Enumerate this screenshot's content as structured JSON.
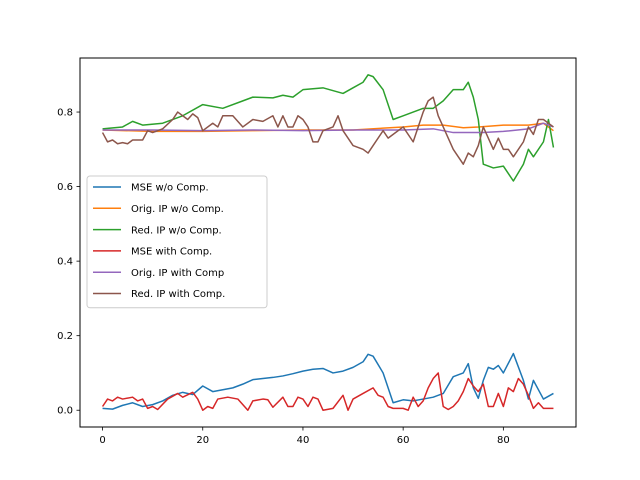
{
  "chart_data": {
    "type": "line",
    "title": "",
    "xlabel": "",
    "ylabel": "",
    "xlim": [
      -4.5,
      94.5
    ],
    "ylim": [
      -0.045,
      0.945
    ],
    "xticks": [
      0,
      20,
      40,
      60,
      80
    ],
    "yticks": [
      0.0,
      0.2,
      0.4,
      0.6,
      0.8
    ],
    "xtick_labels": [
      "0",
      "20",
      "40",
      "60",
      "80"
    ],
    "ytick_labels": [
      "0.0",
      "0.2",
      "0.4",
      "0.6",
      "0.8"
    ],
    "grid": false,
    "legend_position": "center-left",
    "series": [
      {
        "name": "MSE w/o Comp.",
        "color": "#1f77b4",
        "points": [
          [
            0,
            0.005
          ],
          [
            2,
            0.003
          ],
          [
            4,
            0.013
          ],
          [
            6,
            0.02
          ],
          [
            8,
            0.01
          ],
          [
            10,
            0.015
          ],
          [
            12,
            0.025
          ],
          [
            14,
            0.04
          ],
          [
            16,
            0.048
          ],
          [
            18,
            0.042
          ],
          [
            20,
            0.065
          ],
          [
            22,
            0.05
          ],
          [
            24,
            0.055
          ],
          [
            26,
            0.06
          ],
          [
            28,
            0.07
          ],
          [
            30,
            0.082
          ],
          [
            32,
            0.085
          ],
          [
            34,
            0.088
          ],
          [
            36,
            0.092
          ],
          [
            38,
            0.098
          ],
          [
            40,
            0.105
          ],
          [
            42,
            0.11
          ],
          [
            44,
            0.112
          ],
          [
            46,
            0.1
          ],
          [
            48,
            0.105
          ],
          [
            50,
            0.115
          ],
          [
            52,
            0.13
          ],
          [
            53,
            0.15
          ],
          [
            54,
            0.145
          ],
          [
            56,
            0.1
          ],
          [
            58,
            0.02
          ],
          [
            60,
            0.028
          ],
          [
            62,
            0.025
          ],
          [
            64,
            0.03
          ],
          [
            66,
            0.035
          ],
          [
            68,
            0.045
          ],
          [
            70,
            0.09
          ],
          [
            72,
            0.1
          ],
          [
            73,
            0.125
          ],
          [
            74,
            0.06
          ],
          [
            75,
            0.032
          ],
          [
            76,
            0.08
          ],
          [
            77,
            0.115
          ],
          [
            78,
            0.11
          ],
          [
            79,
            0.12
          ],
          [
            80,
            0.1
          ],
          [
            82,
            0.152
          ],
          [
            84,
            0.08
          ],
          [
            85,
            0.03
          ],
          [
            86,
            0.08
          ],
          [
            88,
            0.03
          ],
          [
            90,
            0.045
          ]
        ]
      },
      {
        "name": "Orig. IP w/o Comp.",
        "color": "#ff7f0e",
        "points": [
          [
            0,
            0.752
          ],
          [
            10,
            0.748
          ],
          [
            20,
            0.748
          ],
          [
            30,
            0.75
          ],
          [
            40,
            0.752
          ],
          [
            50,
            0.752
          ],
          [
            60,
            0.76
          ],
          [
            64,
            0.765
          ],
          [
            68,
            0.765
          ],
          [
            72,
            0.758
          ],
          [
            75,
            0.76
          ],
          [
            80,
            0.765
          ],
          [
            85,
            0.765
          ],
          [
            88,
            0.77
          ],
          [
            90,
            0.75
          ]
        ]
      },
      {
        "name": "Red. IP w/o Comp.",
        "color": "#2ca02c",
        "points": [
          [
            0,
            0.755
          ],
          [
            4,
            0.76
          ],
          [
            6,
            0.775
          ],
          [
            8,
            0.765
          ],
          [
            12,
            0.77
          ],
          [
            16,
            0.79
          ],
          [
            20,
            0.82
          ],
          [
            24,
            0.81
          ],
          [
            28,
            0.83
          ],
          [
            30,
            0.84
          ],
          [
            34,
            0.838
          ],
          [
            36,
            0.845
          ],
          [
            38,
            0.84
          ],
          [
            40,
            0.86
          ],
          [
            44,
            0.865
          ],
          [
            48,
            0.85
          ],
          [
            50,
            0.865
          ],
          [
            52,
            0.88
          ],
          [
            53,
            0.9
          ],
          [
            54,
            0.895
          ],
          [
            56,
            0.86
          ],
          [
            58,
            0.78
          ],
          [
            60,
            0.79
          ],
          [
            62,
            0.8
          ],
          [
            64,
            0.81
          ],
          [
            66,
            0.81
          ],
          [
            68,
            0.83
          ],
          [
            70,
            0.86
          ],
          [
            72,
            0.86
          ],
          [
            73,
            0.88
          ],
          [
            74,
            0.84
          ],
          [
            75,
            0.78
          ],
          [
            76,
            0.66
          ],
          [
            78,
            0.65
          ],
          [
            80,
            0.655
          ],
          [
            82,
            0.615
          ],
          [
            84,
            0.66
          ],
          [
            85,
            0.7
          ],
          [
            86,
            0.68
          ],
          [
            88,
            0.72
          ],
          [
            89,
            0.78
          ],
          [
            90,
            0.705
          ]
        ]
      },
      {
        "name": "MSE with Comp.",
        "color": "#d62728",
        "points": [
          [
            0,
            0.01
          ],
          [
            1,
            0.03
          ],
          [
            2,
            0.025
          ],
          [
            3,
            0.035
          ],
          [
            4,
            0.03
          ],
          [
            6,
            0.035
          ],
          [
            7,
            0.025
          ],
          [
            8,
            0.03
          ],
          [
            9,
            0.005
          ],
          [
            10,
            0.01
          ],
          [
            11,
            0.002
          ],
          [
            13,
            0.03
          ],
          [
            15,
            0.045
          ],
          [
            16,
            0.035
          ],
          [
            18,
            0.048
          ],
          [
            19,
            0.03
          ],
          [
            20,
            0.0
          ],
          [
            21,
            0.01
          ],
          [
            22,
            0.005
          ],
          [
            23,
            0.03
          ],
          [
            25,
            0.035
          ],
          [
            27,
            0.03
          ],
          [
            29,
            0.0
          ],
          [
            30,
            0.025
          ],
          [
            32,
            0.03
          ],
          [
            33,
            0.028
          ],
          [
            34,
            0.008
          ],
          [
            36,
            0.035
          ],
          [
            37,
            0.01
          ],
          [
            38,
            0.01
          ],
          [
            39,
            0.035
          ],
          [
            40,
            0.03
          ],
          [
            41,
            0.01
          ],
          [
            42,
            0.035
          ],
          [
            43,
            0.03
          ],
          [
            44,
            0.0
          ],
          [
            46,
            0.005
          ],
          [
            48,
            0.04
          ],
          [
            49,
            0.0
          ],
          [
            50,
            0.03
          ],
          [
            52,
            0.045
          ],
          [
            54,
            0.06
          ],
          [
            55,
            0.04
          ],
          [
            56,
            0.035
          ],
          [
            57,
            0.01
          ],
          [
            58,
            0.005
          ],
          [
            60,
            0.005
          ],
          [
            61,
            0.0
          ],
          [
            62,
            0.035
          ],
          [
            63,
            0.01
          ],
          [
            64,
            0.025
          ],
          [
            65,
            0.06
          ],
          [
            66,
            0.085
          ],
          [
            67,
            0.1
          ],
          [
            68,
            0.01
          ],
          [
            69,
            0.002
          ],
          [
            70,
            0.01
          ],
          [
            71,
            0.025
          ],
          [
            72,
            0.05
          ],
          [
            73,
            0.085
          ],
          [
            74,
            0.065
          ],
          [
            75,
            0.05
          ],
          [
            76,
            0.07
          ],
          [
            77,
            0.01
          ],
          [
            78,
            0.01
          ],
          [
            79,
            0.045
          ],
          [
            80,
            0.01
          ],
          [
            81,
            0.06
          ],
          [
            82,
            0.05
          ],
          [
            83,
            0.085
          ],
          [
            84,
            0.07
          ],
          [
            85,
            0.04
          ],
          [
            86,
            0.005
          ],
          [
            87,
            0.02
          ],
          [
            88,
            0.005
          ],
          [
            90,
            0.005
          ]
        ]
      },
      {
        "name": "Orig. IP with Comp",
        "color": "#9467bd",
        "points": [
          [
            0,
            0.752
          ],
          [
            10,
            0.752
          ],
          [
            20,
            0.75
          ],
          [
            30,
            0.752
          ],
          [
            40,
            0.75
          ],
          [
            50,
            0.752
          ],
          [
            60,
            0.752
          ],
          [
            66,
            0.755
          ],
          [
            70,
            0.745
          ],
          [
            76,
            0.745
          ],
          [
            80,
            0.748
          ],
          [
            85,
            0.755
          ],
          [
            88,
            0.77
          ],
          [
            90,
            0.76
          ]
        ]
      },
      {
        "name": "Red. IP with Comp.",
        "color": "#8c564b",
        "points": [
          [
            0,
            0.745
          ],
          [
            1,
            0.72
          ],
          [
            2,
            0.725
          ],
          [
            3,
            0.715
          ],
          [
            4,
            0.718
          ],
          [
            5,
            0.715
          ],
          [
            6,
            0.725
          ],
          [
            8,
            0.725
          ],
          [
            9,
            0.75
          ],
          [
            10,
            0.745
          ],
          [
            12,
            0.755
          ],
          [
            14,
            0.78
          ],
          [
            15,
            0.8
          ],
          [
            16,
            0.79
          ],
          [
            17,
            0.78
          ],
          [
            18,
            0.795
          ],
          [
            19,
            0.785
          ],
          [
            20,
            0.75
          ],
          [
            22,
            0.77
          ],
          [
            23,
            0.76
          ],
          [
            24,
            0.79
          ],
          [
            26,
            0.79
          ],
          [
            28,
            0.76
          ],
          [
            30,
            0.78
          ],
          [
            32,
            0.775
          ],
          [
            34,
            0.79
          ],
          [
            35,
            0.76
          ],
          [
            36,
            0.79
          ],
          [
            37,
            0.76
          ],
          [
            38,
            0.76
          ],
          [
            39,
            0.79
          ],
          [
            40,
            0.78
          ],
          [
            41,
            0.76
          ],
          [
            42,
            0.72
          ],
          [
            43,
            0.72
          ],
          [
            44,
            0.75
          ],
          [
            46,
            0.76
          ],
          [
            47,
            0.79
          ],
          [
            48,
            0.75
          ],
          [
            50,
            0.71
          ],
          [
            52,
            0.7
          ],
          [
            53,
            0.69
          ],
          [
            54,
            0.71
          ],
          [
            56,
            0.75
          ],
          [
            57,
            0.73
          ],
          [
            58,
            0.74
          ],
          [
            60,
            0.76
          ],
          [
            62,
            0.72
          ],
          [
            64,
            0.8
          ],
          [
            65,
            0.83
          ],
          [
            66,
            0.84
          ],
          [
            67,
            0.79
          ],
          [
            68,
            0.76
          ],
          [
            70,
            0.7
          ],
          [
            72,
            0.66
          ],
          [
            73,
            0.69
          ],
          [
            74,
            0.68
          ],
          [
            75,
            0.71
          ],
          [
            76,
            0.76
          ],
          [
            78,
            0.7
          ],
          [
            79,
            0.73
          ],
          [
            80,
            0.7
          ],
          [
            81,
            0.7
          ],
          [
            82,
            0.68
          ],
          [
            84,
            0.72
          ],
          [
            85,
            0.76
          ],
          [
            86,
            0.74
          ],
          [
            87,
            0.78
          ],
          [
            88,
            0.78
          ],
          [
            90,
            0.76
          ]
        ]
      }
    ]
  }
}
